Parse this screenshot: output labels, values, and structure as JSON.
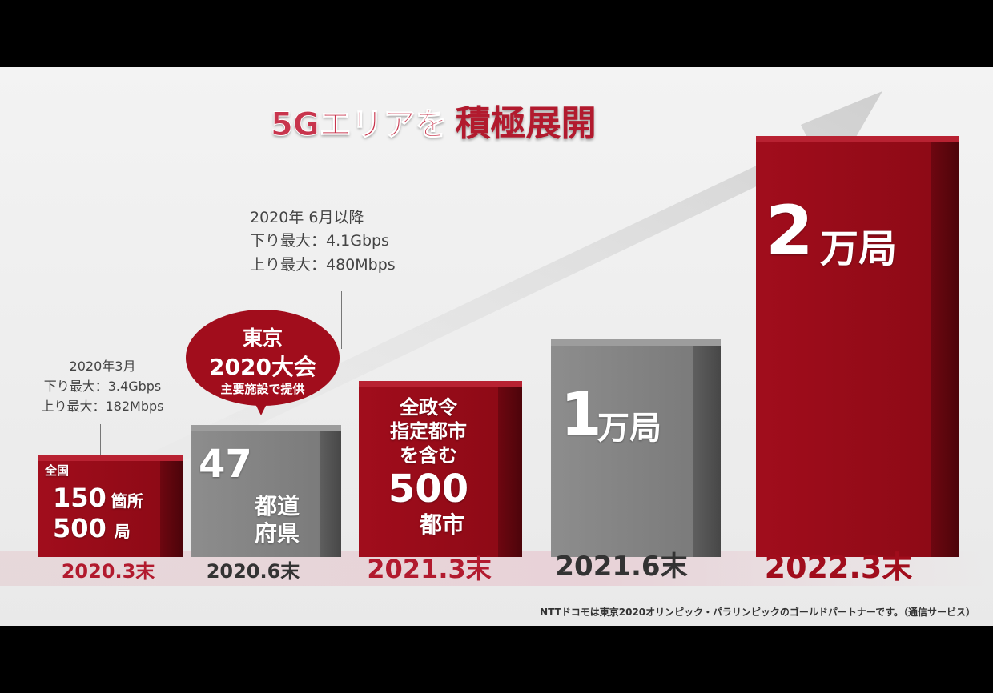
{
  "title": {
    "part1": "5Gエリアを",
    "part2": "積極展開"
  },
  "bars": [
    {
      "year": "2020.3末",
      "label_top": "全国",
      "line1_num": "150",
      "line1_unit": "箇所",
      "line2_num": "500",
      "line2_unit": "局"
    },
    {
      "year": "2020.6末",
      "number": "47",
      "unit_line1": "都道",
      "unit_line2": "府県"
    },
    {
      "year": "2021.3末",
      "line1": "全政令",
      "line2": "指定都市",
      "line3": "を含む",
      "number": "500",
      "unit": "都市"
    },
    {
      "year": "2021.6末",
      "number": "1",
      "unit": "万局"
    },
    {
      "year": "2022.3末",
      "number": "2",
      "unit": "万局"
    }
  ],
  "note_march": {
    "line1": "2020年3月",
    "line2": "下り最大：3.4Gbps",
    "line3": "上り最大：182Mbps"
  },
  "note_june": {
    "line1": "2020年 6月以降",
    "line2": "下り最大：4.1Gbps",
    "line3": "上り最大：480Mbps"
  },
  "bubble": {
    "line1": "東京",
    "line2": "2020大会",
    "line3": "主要施設で提供"
  },
  "footer": "NTTドコモは東京2020オリンピック・パラリンピックのゴールドパートナーです。（通信サービス）",
  "colors": {
    "red": "#a10d1c",
    "gray": "#8d8d8d",
    "title_red": "#c8354d"
  }
}
